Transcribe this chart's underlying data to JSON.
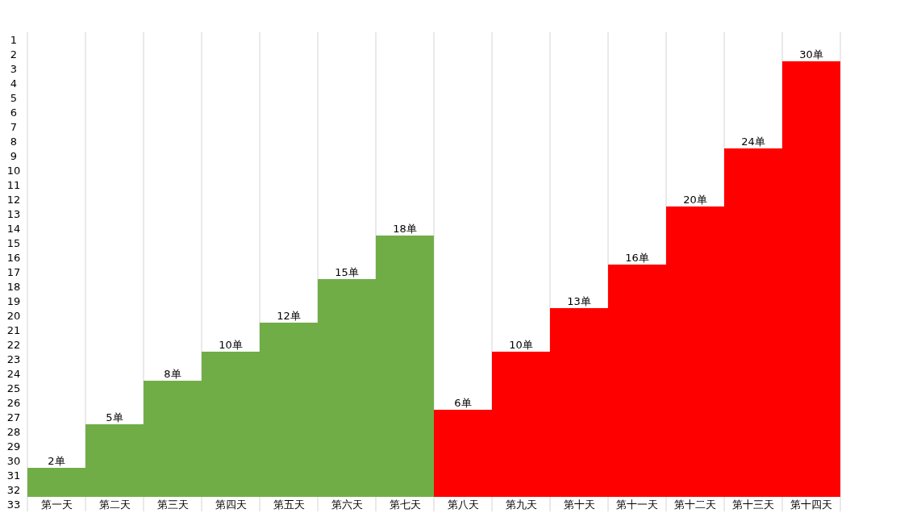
{
  "chart_data": {
    "type": "bar",
    "categories": [
      "第一天",
      "第二天",
      "第三天",
      "第四天",
      "第五天",
      "第六天",
      "第七天",
      "第八天",
      "第九天",
      "第十天",
      "第十一天",
      "第十二天",
      "第十三天",
      "第十四天"
    ],
    "values": [
      2,
      5,
      8,
      10,
      12,
      15,
      18,
      6,
      10,
      13,
      16,
      20,
      24,
      30
    ],
    "colors": [
      "#70ad47",
      "#70ad47",
      "#70ad47",
      "#70ad47",
      "#70ad47",
      "#70ad47",
      "#70ad47",
      "#ff0000",
      "#ff0000",
      "#ff0000",
      "#ff0000",
      "#ff0000",
      "#ff0000",
      "#ff0000"
    ],
    "value_labels": [
      "2单",
      "5单",
      "8单",
      "10单",
      "12单",
      "15单",
      "18单",
      "6单",
      "10单",
      "13单",
      "16单",
      "20单",
      "24单",
      "30单"
    ],
    "ylim": [
      -1,
      32
    ],
    "y2lim": [
      33.5,
      0.5
    ],
    "y2ticks": [
      1,
      2,
      3,
      4,
      5,
      6,
      7,
      8,
      9,
      10,
      11,
      12,
      13,
      14,
      15,
      16,
      17,
      18,
      19,
      20,
      21,
      22,
      23,
      24,
      25,
      26,
      27,
      28,
      29,
      30,
      31,
      32,
      33
    ],
    "grid": "x"
  }
}
